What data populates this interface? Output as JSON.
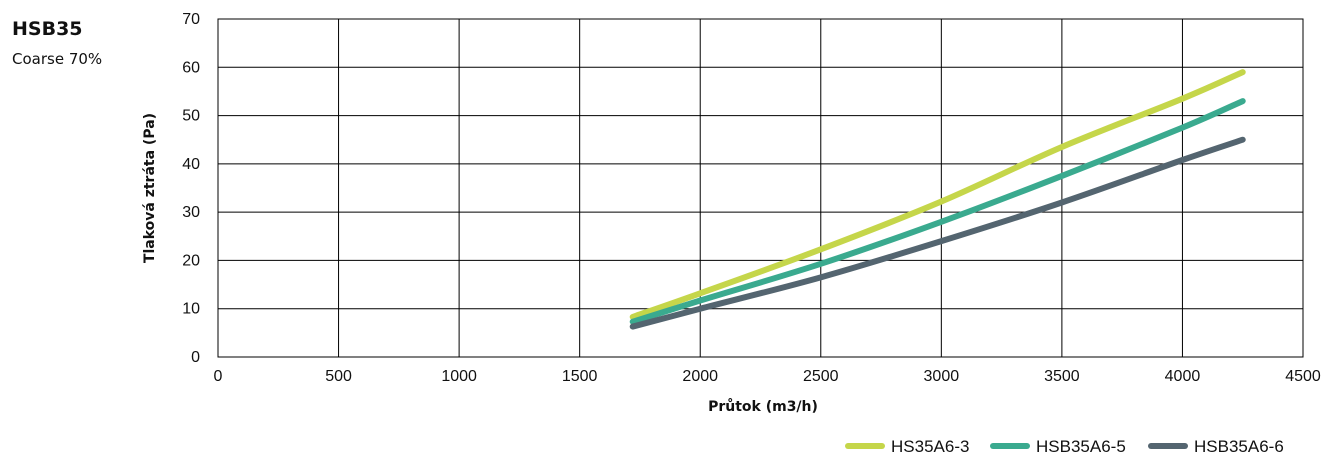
{
  "header": {
    "title": "HSB35",
    "subtitle": "Coarse 70%"
  },
  "chart_data": {
    "type": "line",
    "xlabel": "Průtok (m3/h)",
    "ylabel": "Tlaková ztráta (Pa)",
    "xlim": [
      0,
      4500
    ],
    "ylim": [
      0,
      70
    ],
    "xticks": [
      0,
      500,
      1000,
      1500,
      2000,
      2500,
      3000,
      3500,
      4000,
      4500
    ],
    "yticks": [
      0,
      10,
      20,
      30,
      40,
      50,
      60,
      70
    ],
    "grid": true,
    "legend_position": "bottom-right",
    "series": [
      {
        "name": "HS35A6-3",
        "color": "#c5d64a",
        "x": [
          1720,
          2000,
          2500,
          3000,
          3500,
          4000,
          4250
        ],
        "y": [
          8.3,
          13.2,
          22.3,
          32.2,
          43.5,
          53.5,
          59
        ]
      },
      {
        "name": "HSB35A6-5",
        "color": "#3aaa8f",
        "x": [
          1720,
          2000,
          2500,
          3000,
          3500,
          4000,
          4250
        ],
        "y": [
          7.3,
          11.7,
          19.3,
          28,
          37.5,
          47.5,
          53
        ]
      },
      {
        "name": "HSB35A6-6",
        "color": "#546570",
        "x": [
          1720,
          2000,
          2500,
          3000,
          3500,
          4000,
          4250
        ],
        "y": [
          6.3,
          10,
          16.5,
          24,
          32,
          40.8,
          45
        ]
      }
    ]
  }
}
